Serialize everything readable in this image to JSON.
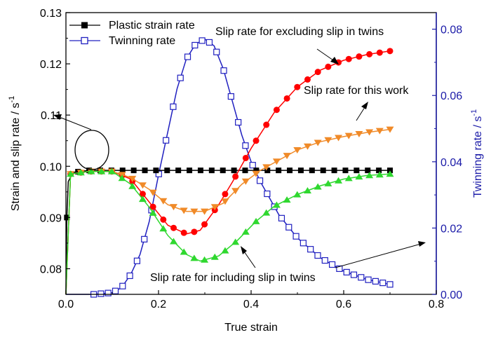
{
  "chart_data": {
    "type": "line",
    "xlabel": "True strain",
    "ylabel_left": "Strain and slip rate / s",
    "ylabel_left_sup": "-1",
    "ylabel_right": "Twinning rate / s",
    "ylabel_right_sup": "-1",
    "xlim": [
      0.0,
      0.8
    ],
    "ylim_left": [
      0.075,
      0.13
    ],
    "ylim_right": [
      0.0,
      0.085
    ],
    "x_ticks": [
      "0.0",
      "0.2",
      "0.4",
      "0.6",
      "0.8"
    ],
    "y_left_ticks": [
      "0.08",
      "0.09",
      "0.10",
      "0.11",
      "0.12",
      "0.13"
    ],
    "y_right_ticks": [
      "0.00",
      "0.02",
      "0.04",
      "0.06",
      "0.08"
    ],
    "grid": false,
    "legend_position": "top-left",
    "colors": {
      "left_axis": "#000000",
      "right_axis": "#1a1aa8",
      "plastic": "#000000",
      "twinning": "#2020c0",
      "slip_excluding": "#ff0000",
      "slip_this_work": "#f08a28",
      "slip_including": "#2fd82f"
    },
    "series": [
      {
        "name": "Plastic strain rate",
        "axis": "left",
        "marker": "square-filled",
        "x": [
          0.0,
          0.002,
          0.005,
          0.015,
          0.03,
          0.05,
          0.1,
          0.2,
          0.3,
          0.4,
          0.5,
          0.6,
          0.7
        ],
        "y": [
          0.075,
          0.09,
          0.097,
          0.0988,
          0.099,
          0.0992,
          0.0992,
          0.0992,
          0.0992,
          0.0992,
          0.0992,
          0.0992,
          0.0992
        ]
      },
      {
        "name": "Twinning rate",
        "axis": "right",
        "marker": "square-open",
        "x": [
          0.0,
          0.06,
          0.1,
          0.12,
          0.14,
          0.16,
          0.18,
          0.2,
          0.22,
          0.24,
          0.26,
          0.28,
          0.3,
          0.32,
          0.34,
          0.36,
          0.38,
          0.4,
          0.42,
          0.44,
          0.46,
          0.5,
          0.55,
          0.6,
          0.65,
          0.7
        ],
        "y": [
          0.0,
          0.0,
          0.0005,
          0.002,
          0.006,
          0.012,
          0.022,
          0.036,
          0.049,
          0.062,
          0.071,
          0.0755,
          0.077,
          0.075,
          0.068,
          0.058,
          0.048,
          0.04,
          0.034,
          0.029,
          0.024,
          0.017,
          0.011,
          0.007,
          0.0045,
          0.003
        ]
      },
      {
        "name": "Slip rate for excluding slip in twins",
        "axis": "left",
        "marker": "circle-filled",
        "x": [
          0.0,
          0.01,
          0.05,
          0.1,
          0.14,
          0.18,
          0.22,
          0.26,
          0.29,
          0.33,
          0.36,
          0.4,
          0.45,
          0.5,
          0.55,
          0.6,
          0.65,
          0.7
        ],
        "y": [
          0.075,
          0.0985,
          0.099,
          0.099,
          0.0975,
          0.093,
          0.0885,
          0.0868,
          0.0875,
          0.0925,
          0.097,
          0.1035,
          0.1105,
          0.1155,
          0.1188,
          0.1207,
          0.1218,
          0.1225
        ]
      },
      {
        "name": "Slip rate for this work",
        "axis": "left",
        "marker": "triangle-down-filled",
        "x": [
          0.0,
          0.01,
          0.05,
          0.1,
          0.14,
          0.18,
          0.22,
          0.26,
          0.3,
          0.34,
          0.38,
          0.42,
          0.46,
          0.5,
          0.55,
          0.6,
          0.65,
          0.7
        ],
        "y": [
          0.075,
          0.0985,
          0.099,
          0.099,
          0.0978,
          0.0955,
          0.0925,
          0.0912,
          0.0912,
          0.0928,
          0.0965,
          0.0992,
          0.1012,
          0.1032,
          0.1048,
          0.1058,
          0.1066,
          0.1072
        ]
      },
      {
        "name": "Slip rate for including slip in twins",
        "axis": "left",
        "marker": "triangle-up-filled",
        "x": [
          0.0,
          0.01,
          0.05,
          0.1,
          0.14,
          0.18,
          0.22,
          0.26,
          0.29,
          0.33,
          0.37,
          0.41,
          0.45,
          0.5,
          0.55,
          0.6,
          0.65,
          0.7
        ],
        "y": [
          0.075,
          0.0985,
          0.099,
          0.099,
          0.0965,
          0.092,
          0.0865,
          0.0828,
          0.0815,
          0.0825,
          0.0855,
          0.0892,
          0.0922,
          0.0945,
          0.0962,
          0.0975,
          0.0982,
          0.0985
        ]
      }
    ],
    "annotations": [
      {
        "name": "excluding_label",
        "text": "Slip rate for excluding slip in twins"
      },
      {
        "name": "this_work_label",
        "text": "Slip rate for this work"
      },
      {
        "name": "including_label",
        "text": "Slip rate for including slip in twins"
      }
    ]
  }
}
